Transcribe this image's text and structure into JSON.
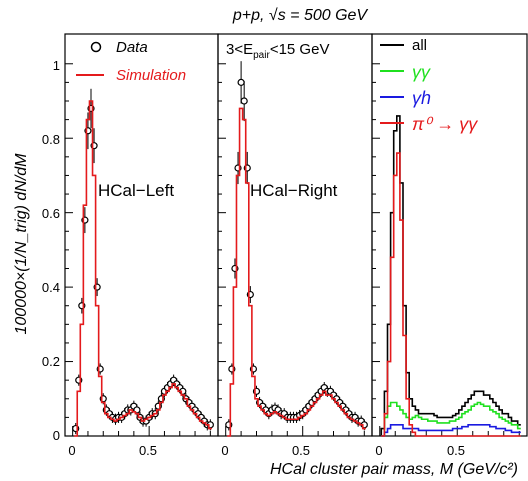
{
  "figure": {
    "title": "p+p, √s = 500 GeV",
    "xlabel": "HCal cluster pair mass, M (GeV/c²)",
    "ylabel": "100000×(1/N_trig) dN/dM",
    "y_ticks": [
      "0",
      "0.2",
      "0.4",
      "0.6",
      "0.8",
      "1"
    ],
    "x_ticks": [
      "0",
      "0.5"
    ]
  },
  "colors": {
    "data": "#000000",
    "simulation": "#e41a1c",
    "all": "#000000",
    "gg": "#1fe01f",
    "gh": "#1a1ae0",
    "pi0": "#e41a1c"
  },
  "panel1": {
    "label": "HCal−Left",
    "legend": {
      "data": "Data",
      "simulation": "Simulation"
    }
  },
  "panel2": {
    "label": "HCal−Right",
    "energy_cut": {
      "low": "3",
      "var": "E",
      "sub": "pair",
      "high": "15 GeV"
    }
  },
  "panel3": {
    "legend": {
      "all": "all",
      "gg": "γγ",
      "gh": "γh",
      "pi0": "π⁰ → γγ"
    }
  },
  "chart_data": [
    {
      "type": "line",
      "panel": "HCal-Left",
      "xlim": [
        -0.05,
        0.95
      ],
      "ylim": [
        0,
        1.08
      ],
      "x": [
        0.02,
        0.04,
        0.06,
        0.08,
        0.1,
        0.12,
        0.14,
        0.16,
        0.18,
        0.2,
        0.22,
        0.24,
        0.26,
        0.28,
        0.3,
        0.32,
        0.34,
        0.36,
        0.38,
        0.4,
        0.42,
        0.44,
        0.46,
        0.48,
        0.5,
        0.52,
        0.54,
        0.56,
        0.58,
        0.6,
        0.62,
        0.64,
        0.66,
        0.68,
        0.7,
        0.72,
        0.74,
        0.76,
        0.78,
        0.8,
        0.82,
        0.84,
        0.86,
        0.88,
        0.9
      ],
      "series": [
        {
          "name": "Data",
          "values": [
            0.02,
            0.15,
            0.35,
            0.58,
            0.82,
            0.88,
            0.78,
            0.4,
            0.18,
            0.1,
            0.07,
            0.06,
            0.05,
            0.045,
            0.05,
            0.05,
            0.06,
            0.07,
            0.07,
            0.08,
            0.07,
            0.05,
            0.04,
            0.04,
            0.05,
            0.06,
            0.06,
            0.08,
            0.1,
            0.12,
            0.13,
            0.14,
            0.15,
            0.14,
            0.13,
            0.12,
            0.1,
            0.09,
            0.08,
            0.07,
            0.06,
            0.05,
            0.04,
            0.03,
            0.03
          ]
        },
        {
          "name": "Simulation",
          "values": [
            0.0,
            0.12,
            0.3,
            0.62,
            0.85,
            0.9,
            0.7,
            0.35,
            0.16,
            0.09,
            0.06,
            0.05,
            0.045,
            0.04,
            0.045,
            0.05,
            0.055,
            0.06,
            0.07,
            0.065,
            0.06,
            0.05,
            0.04,
            0.045,
            0.05,
            0.055,
            0.06,
            0.07,
            0.09,
            0.11,
            0.12,
            0.13,
            0.14,
            0.13,
            0.12,
            0.11,
            0.1,
            0.08,
            0.07,
            0.06,
            0.05,
            0.04,
            0.035,
            0.03,
            0.02
          ]
        }
      ]
    },
    {
      "type": "line",
      "panel": "HCal-Right",
      "xlim": [
        -0.05,
        0.95
      ],
      "ylim": [
        0,
        1.08
      ],
      "x": [
        0.02,
        0.04,
        0.06,
        0.08,
        0.1,
        0.12,
        0.14,
        0.16,
        0.18,
        0.2,
        0.22,
        0.24,
        0.26,
        0.28,
        0.3,
        0.32,
        0.34,
        0.36,
        0.38,
        0.4,
        0.42,
        0.44,
        0.46,
        0.48,
        0.5,
        0.52,
        0.54,
        0.56,
        0.58,
        0.6,
        0.62,
        0.64,
        0.66,
        0.68,
        0.7,
        0.72,
        0.74,
        0.76,
        0.78,
        0.8,
        0.82,
        0.84,
        0.86,
        0.88,
        0.9
      ],
      "series": [
        {
          "name": "Data",
          "values": [
            0.03,
            0.18,
            0.45,
            0.72,
            0.95,
            0.9,
            0.72,
            0.38,
            0.18,
            0.12,
            0.09,
            0.08,
            0.07,
            0.06,
            0.07,
            0.075,
            0.07,
            0.06,
            0.06,
            0.05,
            0.05,
            0.05,
            0.05,
            0.055,
            0.06,
            0.07,
            0.08,
            0.09,
            0.1,
            0.11,
            0.12,
            0.13,
            0.12,
            0.12,
            0.11,
            0.1,
            0.09,
            0.08,
            0.07,
            0.06,
            0.05,
            0.05,
            0.04,
            0.04,
            0.03
          ]
        },
        {
          "name": "Simulation",
          "values": [
            0.0,
            0.14,
            0.4,
            0.7,
            0.88,
            0.85,
            0.68,
            0.35,
            0.16,
            0.1,
            0.08,
            0.07,
            0.06,
            0.055,
            0.06,
            0.065,
            0.06,
            0.055,
            0.05,
            0.045,
            0.045,
            0.045,
            0.045,
            0.05,
            0.055,
            0.06,
            0.07,
            0.08,
            0.09,
            0.1,
            0.11,
            0.12,
            0.11,
            0.11,
            0.1,
            0.09,
            0.08,
            0.07,
            0.06,
            0.05,
            0.045,
            0.04,
            0.035,
            0.03,
            0.02
          ]
        }
      ]
    },
    {
      "type": "line",
      "panel": "components",
      "xlim": [
        -0.05,
        0.95
      ],
      "ylim": [
        0,
        1.08
      ],
      "x": [
        0.02,
        0.04,
        0.06,
        0.08,
        0.1,
        0.12,
        0.14,
        0.16,
        0.18,
        0.2,
        0.22,
        0.24,
        0.26,
        0.28,
        0.3,
        0.32,
        0.34,
        0.36,
        0.38,
        0.4,
        0.42,
        0.44,
        0.46,
        0.48,
        0.5,
        0.52,
        0.54,
        0.56,
        0.58,
        0.6,
        0.62,
        0.64,
        0.66,
        0.68,
        0.7,
        0.72,
        0.74,
        0.76,
        0.78,
        0.8,
        0.82,
        0.84,
        0.86,
        0.88,
        0.9
      ],
      "series": [
        {
          "name": "all",
          "values": [
            0.02,
            0.12,
            0.3,
            0.6,
            0.82,
            0.86,
            0.68,
            0.35,
            0.17,
            0.1,
            0.08,
            0.07,
            0.06,
            0.06,
            0.06,
            0.06,
            0.06,
            0.055,
            0.05,
            0.05,
            0.05,
            0.05,
            0.05,
            0.055,
            0.06,
            0.07,
            0.08,
            0.09,
            0.1,
            0.11,
            0.12,
            0.12,
            0.12,
            0.11,
            0.11,
            0.1,
            0.09,
            0.08,
            0.07,
            0.06,
            0.06,
            0.05,
            0.04,
            0.04,
            0.03
          ]
        },
        {
          "name": "γγ",
          "values": [
            0.0,
            0.05,
            0.08,
            0.09,
            0.09,
            0.08,
            0.07,
            0.06,
            0.05,
            0.045,
            0.05,
            0.055,
            0.05,
            0.045,
            0.045,
            0.04,
            0.04,
            0.04,
            0.035,
            0.035,
            0.035,
            0.035,
            0.04,
            0.04,
            0.045,
            0.05,
            0.06,
            0.065,
            0.07,
            0.08,
            0.085,
            0.09,
            0.085,
            0.08,
            0.08,
            0.07,
            0.065,
            0.06,
            0.05,
            0.045,
            0.04,
            0.035,
            0.03,
            0.03,
            0.02
          ]
        },
        {
          "name": "γh",
          "values": [
            0.0,
            0.01,
            0.02,
            0.03,
            0.03,
            0.03,
            0.03,
            0.02,
            0.02,
            0.02,
            0.02,
            0.02,
            0.015,
            0.015,
            0.015,
            0.015,
            0.015,
            0.015,
            0.015,
            0.015,
            0.015,
            0.015,
            0.015,
            0.02,
            0.02,
            0.02,
            0.025,
            0.025,
            0.03,
            0.03,
            0.03,
            0.03,
            0.03,
            0.03,
            0.03,
            0.025,
            0.025,
            0.02,
            0.02,
            0.02,
            0.015,
            0.015,
            0.01,
            0.01,
            0.01
          ]
        },
        {
          "name": "π⁰ → γγ",
          "values": [
            0.0,
            0.06,
            0.2,
            0.48,
            0.7,
            0.76,
            0.58,
            0.27,
            0.1,
            0.03,
            0.01,
            0.0,
            0.0,
            0.0,
            0.0,
            0.0,
            0.0,
            0.0,
            0.0,
            0.0,
            0.0,
            0.0,
            0.0,
            0.0,
            0.0,
            0.0,
            0.0,
            0.0,
            0.0,
            0.0,
            0.0,
            0.0,
            0.0,
            0.0,
            0.0,
            0.0,
            0.0,
            0.0,
            0.0,
            0.0,
            0.0,
            0.0,
            0.0,
            0.0,
            0.0
          ]
        }
      ]
    }
  ]
}
